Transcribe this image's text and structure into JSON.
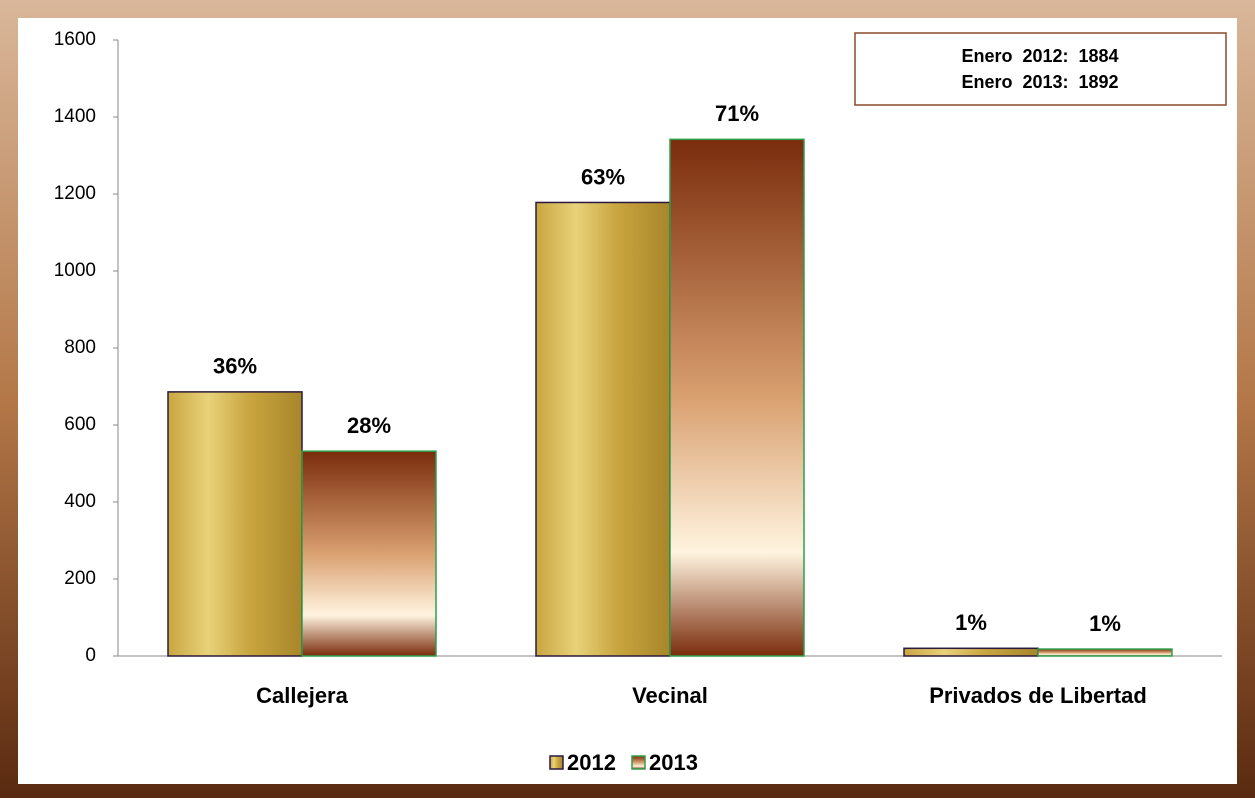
{
  "chart_data": {
    "type": "bar",
    "categories": [
      "Callejera",
      "Vecinal",
      "Privados de Libertad"
    ],
    "series": [
      {
        "name": "2012",
        "color": "#c9a640",
        "edgecolor": "#2a1a40",
        "values": [
          686,
          1178,
          20
        ],
        "percent_labels": [
          "36%",
          "63%",
          "1%"
        ]
      },
      {
        "name": "2013",
        "color": "#7a2c0c",
        "edgecolor": "#2e9e4a",
        "values": [
          532,
          1342,
          18
        ],
        "percent_labels": [
          "28%",
          "71%",
          "1%"
        ]
      }
    ],
    "ylim": [
      0,
      1600
    ],
    "yticks": [
      0,
      200,
      400,
      600,
      800,
      1000,
      1200,
      1400,
      1600
    ],
    "grid": false,
    "annotation": [
      "Enero  2012:  1884",
      "Enero  2013:  1892"
    ],
    "legend": "bottom"
  }
}
